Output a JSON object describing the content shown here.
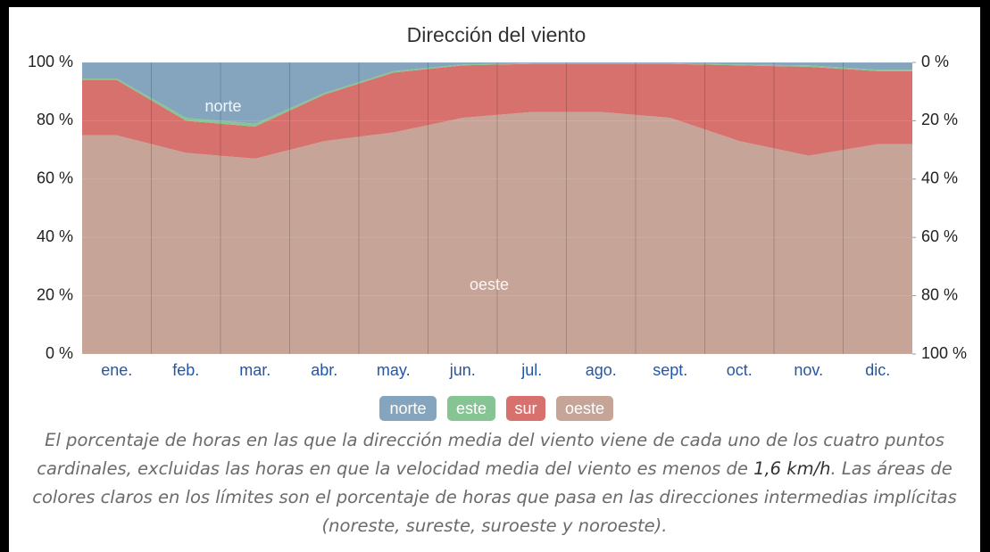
{
  "chart_data": {
    "type": "stacked_area",
    "title": "Dirección del viento",
    "categories": [
      "ene.",
      "feb.",
      "mar.",
      "abr.",
      "may.",
      "jun.",
      "jul.",
      "ago.",
      "sept.",
      "oct.",
      "nov.",
      "dic."
    ],
    "series": [
      {
        "name": "oeste",
        "color": "#c6a497",
        "values": [
          75,
          69,
          67,
          73,
          76,
          81,
          83,
          83,
          81,
          73,
          68,
          72
        ]
      },
      {
        "name": "sur",
        "color": "#d7716e",
        "values": [
          19,
          11,
          11,
          16,
          20.5,
          18,
          16.5,
          16.5,
          18.5,
          26,
          30.5,
          25
        ]
      },
      {
        "name": "este",
        "color": "#86c493",
        "values": [
          0.5,
          1,
          1,
          0.5,
          0.5,
          0.3,
          0.2,
          0.2,
          0.2,
          0.3,
          0.5,
          0.5
        ]
      },
      {
        "name": "norte",
        "color": "#84a5bd",
        "values": [
          5.5,
          19,
          21,
          10.5,
          3,
          0.7,
          0.3,
          0.3,
          0.3,
          0.7,
          1,
          2.5
        ]
      }
    ],
    "ylim": [
      0,
      100
    ],
    "yticks": [
      {
        "value": 0,
        "label": "0 %"
      },
      {
        "value": 20,
        "label": "20 %"
      },
      {
        "value": 40,
        "label": "40 %"
      },
      {
        "value": 60,
        "label": "60 %"
      },
      {
        "value": 80,
        "label": "80 %"
      },
      {
        "value": 100,
        "label": "100 %"
      }
    ],
    "y2lim": [
      100,
      0
    ],
    "y2ticks": [
      {
        "value": 0,
        "label": "0 %"
      },
      {
        "value": 20,
        "label": "20 %"
      },
      {
        "value": 40,
        "label": "40 %"
      },
      {
        "value": 60,
        "label": "60 %"
      },
      {
        "value": 80,
        "label": "80 %"
      },
      {
        "value": 100,
        "label": "100 %"
      }
    ],
    "grid": true,
    "annotations": [
      "norte",
      "oeste"
    ],
    "caption": [
      "El porcentaje de horas en las que la dirección media del viento viene de cada uno de los cuatro puntos cardinales, excluidas las horas en que la velocidad media del viento es menos de ",
      "1,6 km/h",
      ". Las áreas de colores claros en los límites son el porcentaje de horas que pasa en las direcciones intermedias implícitas (noreste, sureste, suroeste y noroeste)."
    ]
  }
}
